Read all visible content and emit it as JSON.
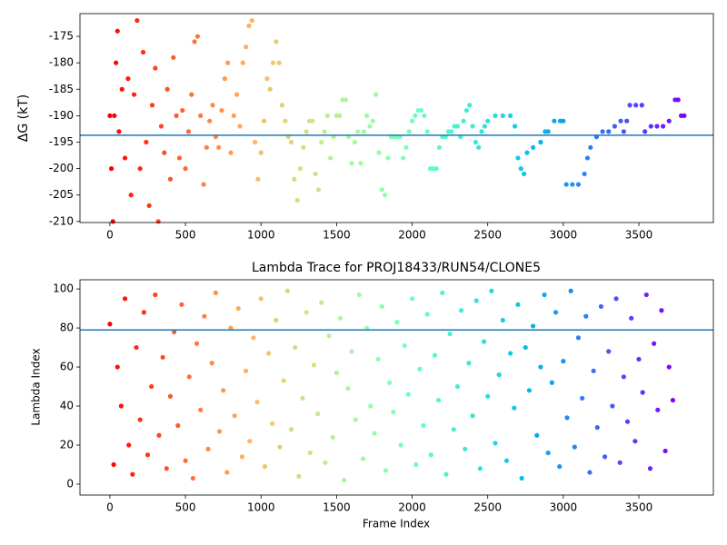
{
  "chart_data": [
    {
      "type": "scatter",
      "ylabel": "ΔG (kT)",
      "colormap": "rainbow_r",
      "hline": -193.7,
      "hline_color": "#1f77b4",
      "x": [
        0,
        10,
        20,
        30,
        40,
        50,
        60,
        80,
        100,
        120,
        140,
        160,
        180,
        200,
        220,
        240,
        260,
        280,
        300,
        320,
        340,
        360,
        380,
        400,
        420,
        440,
        460,
        480,
        500,
        520,
        540,
        560,
        580,
        600,
        620,
        640,
        660,
        680,
        700,
        720,
        740,
        760,
        780,
        800,
        820,
        840,
        860,
        880,
        900,
        920,
        940,
        960,
        980,
        1000,
        1020,
        1040,
        1060,
        1080,
        1100,
        1120,
        1140,
        1160,
        1180,
        1200,
        1220,
        1240,
        1260,
        1280,
        1300,
        1320,
        1340,
        1360,
        1380,
        1400,
        1420,
        1440,
        1460,
        1480,
        1500,
        1520,
        1540,
        1560,
        1580,
        1600,
        1620,
        1640,
        1660,
        1680,
        1700,
        1720,
        1740,
        1760,
        1780,
        1800,
        1820,
        1840,
        1860,
        1880,
        1900,
        1920,
        1940,
        1960,
        1980,
        2000,
        2020,
        2040,
        2060,
        2080,
        2100,
        2120,
        2140,
        2160,
        2180,
        2200,
        2220,
        2240,
        2260,
        2280,
        2300,
        2320,
        2340,
        2360,
        2380,
        2400,
        2420,
        2440,
        2460,
        2480,
        2500,
        2550,
        2600,
        2650,
        2680,
        2700,
        2720,
        2740,
        2760,
        2800,
        2850,
        2880,
        2900,
        2940,
        2980,
        3000,
        3020,
        3060,
        3100,
        3140,
        3160,
        3180,
        3220,
        3260,
        3300,
        3340,
        3380,
        3400,
        3420,
        3440,
        3480,
        3520,
        3540,
        3580,
        3620,
        3660,
        3700,
        3740,
        3760,
        3780,
        3800
      ],
      "values": [
        -190,
        -200,
        -210,
        -190,
        -180,
        -174,
        -193,
        -185,
        -198,
        -183,
        -205,
        -186,
        -172,
        -200,
        -178,
        -195,
        -207,
        -188,
        -181,
        -210,
        -192,
        -197,
        -185,
        -202,
        -179,
        -190,
        -198,
        -189,
        -200,
        -193,
        -186,
        -176,
        -175,
        -190,
        -203,
        -196,
        -191,
        -188,
        -194,
        -196,
        -189,
        -183,
        -180,
        -197,
        -190,
        -186,
        -192,
        -180,
        -177,
        -173,
        -172,
        -195,
        -202,
        -197,
        -191,
        -183,
        -185,
        -180,
        -176,
        -180,
        -188,
        -191,
        -194,
        -195,
        -202,
        -206,
        -200,
        -196,
        -193,
        -191,
        -191,
        -201,
        -204,
        -195,
        -193,
        -190,
        -198,
        -194,
        -190,
        -190,
        -187,
        -187,
        -194,
        -199,
        -195,
        -193,
        -199,
        -193,
        -190,
        -192,
        -191,
        -186,
        -197,
        -204,
        -205,
        -198,
        -194,
        -194,
        -194,
        -194,
        -198,
        -196,
        -193,
        -191,
        -190,
        -189,
        -189,
        -190,
        -193,
        -200,
        -200,
        -200,
        -196,
        -194,
        -194,
        -193,
        -193,
        -192,
        -192,
        -194,
        -191,
        -189,
        -188,
        -192,
        -195,
        -196,
        -193,
        -192,
        -191,
        -190,
        -190,
        -190,
        -192,
        -198,
        -200,
        -201,
        -197,
        -196,
        -195,
        -193,
        -193,
        -191,
        -191,
        -191,
        -203,
        -203,
        -203,
        -201,
        -198,
        -196,
        -194,
        -193,
        -193,
        -192,
        -191,
        -193,
        -191,
        -188,
        -188,
        -188,
        -193,
        -192,
        -192,
        -192,
        -191,
        -187,
        -187,
        -190,
        -190
      ],
      "xlim": [
        -198,
        3993
      ],
      "ylim": [
        -210.2,
        -170.7
      ],
      "xticks": [
        0,
        500,
        1000,
        1500,
        2000,
        2500,
        3000,
        3500
      ],
      "yticks": [
        -210,
        -205,
        -200,
        -195,
        -190,
        -185,
        -180,
        -175
      ]
    },
    {
      "type": "scatter",
      "title": "Lambda Trace for PROJ18433/RUN54/CLONE5",
      "xlabel": "Frame Index",
      "ylabel": "Lambda Index",
      "colormap": "rainbow_r",
      "hline": 79,
      "hline_color": "#1f77b4",
      "x": [
        0,
        25,
        50,
        75,
        100,
        125,
        150,
        175,
        200,
        225,
        250,
        275,
        300,
        325,
        350,
        375,
        400,
        425,
        450,
        475,
        500,
        525,
        550,
        575,
        600,
        625,
        650,
        675,
        700,
        725,
        750,
        775,
        800,
        825,
        850,
        875,
        900,
        925,
        950,
        975,
        1000,
        1025,
        1050,
        1075,
        1100,
        1125,
        1150,
        1175,
        1200,
        1225,
        1250,
        1275,
        1300,
        1325,
        1350,
        1375,
        1400,
        1425,
        1450,
        1475,
        1500,
        1525,
        1550,
        1575,
        1600,
        1625,
        1650,
        1675,
        1700,
        1725,
        1750,
        1775,
        1800,
        1825,
        1850,
        1875,
        1900,
        1925,
        1950,
        1975,
        2000,
        2025,
        2050,
        2075,
        2100,
        2125,
        2150,
        2175,
        2200,
        2225,
        2250,
        2275,
        2300,
        2325,
        2350,
        2375,
        2400,
        2425,
        2450,
        2475,
        2500,
        2525,
        2550,
        2575,
        2600,
        2625,
        2650,
        2675,
        2700,
        2725,
        2750,
        2775,
        2800,
        2825,
        2850,
        2875,
        2900,
        2925,
        2950,
        2975,
        3000,
        3025,
        3050,
        3075,
        3100,
        3125,
        3150,
        3175,
        3200,
        3225,
        3250,
        3275,
        3300,
        3325,
        3350,
        3375,
        3400,
        3425,
        3450,
        3475,
        3500,
        3525,
        3550,
        3575,
        3600,
        3625,
        3650,
        3675,
        3700,
        3725
      ],
      "values": [
        82,
        10,
        60,
        40,
        95,
        20,
        5,
        70,
        33,
        88,
        15,
        50,
        97,
        25,
        65,
        8,
        45,
        78,
        30,
        92,
        12,
        55,
        3,
        72,
        38,
        86,
        18,
        62,
        98,
        27,
        48,
        6,
        80,
        35,
        90,
        14,
        58,
        22,
        75,
        42,
        95,
        9,
        67,
        31,
        84,
        19,
        53,
        99,
        28,
        70,
        4,
        44,
        88,
        16,
        61,
        36,
        93,
        11,
        76,
        24,
        57,
        85,
        2,
        49,
        68,
        33,
        97,
        13,
        80,
        40,
        26,
        64,
        91,
        7,
        52,
        37,
        83,
        20,
        71,
        46,
        95,
        10,
        59,
        30,
        87,
        15,
        66,
        43,
        98,
        5,
        77,
        28,
        50,
        89,
        18,
        62,
        35,
        94,
        8,
        73,
        45,
        99,
        21,
        56,
        84,
        12,
        67,
        39,
        92,
        3,
        70,
        48,
        81,
        25,
        60,
        97,
        16,
        52,
        88,
        9,
        63,
        34,
        99,
        19,
        75,
        44,
        86,
        6,
        58,
        29,
        91,
        14,
        68,
        40,
        95,
        11,
        55,
        32,
        85,
        22,
        64,
        47,
        97,
        8,
        72,
        38,
        89,
        17,
        60,
        43
      ],
      "xlim": [
        -198,
        3993
      ],
      "ylim": [
        -5.6,
        104.7
      ],
      "xticks": [
        0,
        500,
        1000,
        1500,
        2000,
        2500,
        3000,
        3500
      ],
      "yticks": [
        0,
        20,
        40,
        60,
        80,
        100
      ]
    }
  ]
}
